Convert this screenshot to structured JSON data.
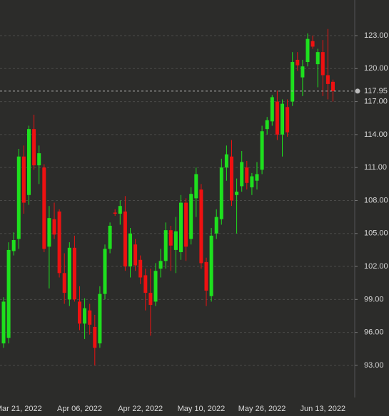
{
  "chart_data": {
    "type": "candlestick",
    "categories": [
      null,
      null,
      null,
      "Mar 21, 2022",
      null,
      null,
      null,
      null,
      null,
      null,
      null,
      null,
      null,
      null,
      null,
      "Apr 06, 2022",
      null,
      null,
      null,
      null,
      null,
      null,
      null,
      null,
      null,
      null,
      null,
      "Apr 22, 2022",
      null,
      null,
      null,
      null,
      null,
      null,
      null,
      null,
      null,
      null,
      null,
      "May 10, 2022",
      null,
      null,
      null,
      null,
      null,
      null,
      null,
      null,
      null,
      null,
      null,
      "May 26, 2022",
      null,
      null,
      null,
      null,
      null,
      null,
      null,
      null,
      null,
      null,
      null,
      "Jun 13, 2022",
      null,
      null
    ],
    "open": [
      95.0,
      95.5,
      103.4,
      104.5,
      112.0,
      108.5,
      114.5,
      111.2,
      111.0,
      103.8,
      106.3,
      107.0,
      101.4,
      99.0,
      103.7,
      98.8,
      96.8,
      98.0,
      96.5,
      95.0,
      99.5,
      103.6,
      106.9,
      106.8,
      107.0,
      102.0,
      104.0,
      102.6,
      101.2,
      99.6,
      98.8,
      101.8,
      102.5,
      105.3,
      103.5,
      103.3,
      107.8,
      104.5,
      108.2,
      109.0,
      102.4,
      99.3,
      105.0,
      106.3,
      111.0,
      112.0,
      108.5,
      109.3,
      111.0,
      109.2,
      109.8,
      110.8,
      114.5,
      115.2,
      117.0,
      114.0,
      116.5,
      117.0,
      120.8,
      119.2,
      120.6,
      122.5,
      120.4,
      121.5,
      119.4,
      118.8
    ],
    "high": [
      99.2,
      104.2,
      105.1,
      112.7,
      113.0,
      114.8,
      115.8,
      113.0,
      111.3,
      107.5,
      107.8,
      107.2,
      103.2,
      104.2,
      104.8,
      100.2,
      99.1,
      98.6,
      97.6,
      100.2,
      104.0,
      106.0,
      107.2,
      108.0,
      108.4,
      105.5,
      104.5,
      103.0,
      101.8,
      101.8,
      102.3,
      103.6,
      106.0,
      105.7,
      106.5,
      108.5,
      108.2,
      109.2,
      111.0,
      109.5,
      102.8,
      105.5,
      107.2,
      111.8,
      113.0,
      113.5,
      110.0,
      112.5,
      111.6,
      110.5,
      111.5,
      114.8,
      115.6,
      117.6,
      118.0,
      117.2,
      117.2,
      121.5,
      121.5,
      120.8,
      123.2,
      123.0,
      121.8,
      122.6,
      123.6,
      119.0
    ],
    "low": [
      94.6,
      95.0,
      103.0,
      103.6,
      106.8,
      107.6,
      110.8,
      109.5,
      103.3,
      100.0,
      104.5,
      101.0,
      98.6,
      98.4,
      98.8,
      96.2,
      95.4,
      95.8,
      93.0,
      94.6,
      99.0,
      103.2,
      106.6,
      105.8,
      101.6,
      101.0,
      101.6,
      100.4,
      98.0,
      95.7,
      98.4,
      101.0,
      101.8,
      101.6,
      101.4,
      102.6,
      102.5,
      104.0,
      106.5,
      101.8,
      98.4,
      98.8,
      104.5,
      105.8,
      109.8,
      107.5,
      105.0,
      108.8,
      109.0,
      108.5,
      109.0,
      110.4,
      114.0,
      114.8,
      113.5,
      112.0,
      113.8,
      116.6,
      119.8,
      117.5,
      120.2,
      121.8,
      118.3,
      117.5,
      117.2,
      117.0
    ],
    "close": [
      98.8,
      103.5,
      104.4,
      112.0,
      107.8,
      114.5,
      111.2,
      112.3,
      103.6,
      106.4,
      104.9,
      101.4,
      99.6,
      103.7,
      99.0,
      96.8,
      98.2,
      96.7,
      94.6,
      99.5,
      103.6,
      105.7,
      106.8,
      107.5,
      102.0,
      105.0,
      102.1,
      101.0,
      99.6,
      98.5,
      101.6,
      102.5,
      105.3,
      103.9,
      105.2,
      107.8,
      103.8,
      108.6,
      110.4,
      102.3,
      99.8,
      104.8,
      106.5,
      111.0,
      112.2,
      108.0,
      108.8,
      111.5,
      109.6,
      110.2,
      110.4,
      114.3,
      115.3,
      117.4,
      114.0,
      116.8,
      114.2,
      120.6,
      120.3,
      120.2,
      122.7,
      122.0,
      121.5,
      119.4,
      118.6,
      117.95
    ],
    "up_color": "#1ee01e",
    "down_color": "#ee1111",
    "last_price": {
      "value": 117.95,
      "label": "117.95"
    },
    "ylim": [
      90.08,
      126.24
    ],
    "yticks": [
      {
        "value": 93,
        "label": "93.00"
      },
      {
        "value": 96,
        "label": "96.00"
      },
      {
        "value": 99,
        "label": "99.00"
      },
      {
        "value": 102,
        "label": "102.00"
      },
      {
        "value": 105,
        "label": "105.00"
      },
      {
        "value": 108,
        "label": "108.00"
      },
      {
        "value": 111,
        "label": "111.00"
      },
      {
        "value": 114,
        "label": "114.00"
      },
      {
        "value": 117,
        "label": "117.00"
      },
      {
        "value": 120,
        "label": "120.00"
      },
      {
        "value": 123,
        "label": "123.00"
      }
    ],
    "grid": true
  }
}
